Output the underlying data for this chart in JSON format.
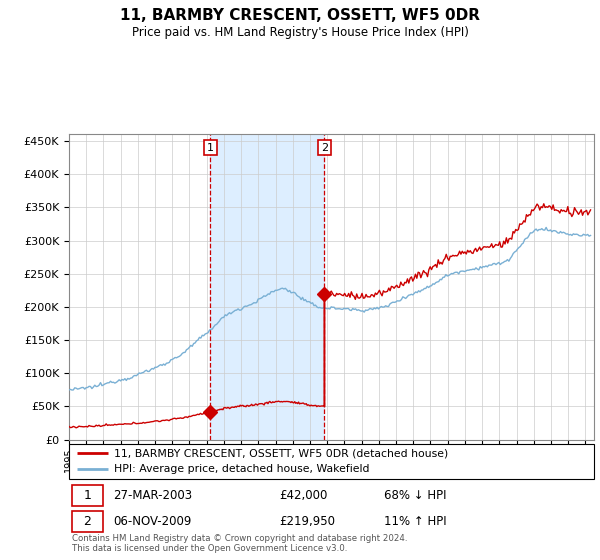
{
  "title": "11, BARMBY CRESCENT, OSSETT, WF5 0DR",
  "subtitle": "Price paid vs. HM Land Registry's House Price Index (HPI)",
  "legend_line1": "11, BARMBY CRESCENT, OSSETT, WF5 0DR (detached house)",
  "legend_line2": "HPI: Average price, detached house, Wakefield",
  "footnote": "Contains HM Land Registry data © Crown copyright and database right 2024.\nThis data is licensed under the Open Government Licence v3.0.",
  "sale1_label": "1",
  "sale1_date": "27-MAR-2003",
  "sale1_price": "£42,000",
  "sale1_hpi": "68% ↓ HPI",
  "sale2_label": "2",
  "sale2_date": "06-NOV-2009",
  "sale2_price": "£219,950",
  "sale2_hpi": "11% ↑ HPI",
  "red_color": "#cc0000",
  "blue_color": "#7ab0d4",
  "bg_chart": "#ddeeff",
  "sale1_x": 2003.22,
  "sale1_y": 42000,
  "sale2_x": 2009.84,
  "sale2_y": 219950,
  "ylim": [
    0,
    460000
  ],
  "xlim_start": 1995.0,
  "xlim_end": 2025.5
}
